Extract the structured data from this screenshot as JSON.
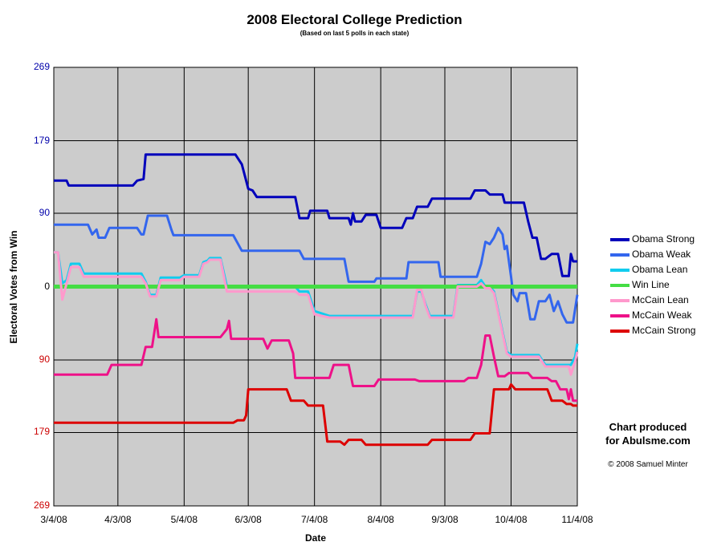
{
  "chart_data": {
    "type": "line",
    "title": "2008 Electoral College Prediction",
    "subtitle": "(Based on last 5 polls in each state)",
    "xlabel": "Date",
    "ylabel": "Electoral Votes from Win",
    "x_ticks": [
      "3/4/08",
      "4/3/08",
      "5/4/08",
      "6/3/08",
      "7/4/08",
      "8/4/08",
      "9/3/08",
      "10/4/08",
      "11/4/08"
    ],
    "x_range": [
      "3/4/08",
      "11/4/08"
    ],
    "y_range": [
      -269,
      269
    ],
    "y_ticks": [
      {
        "value": 269,
        "label": "269",
        "color": "#0000aa"
      },
      {
        "value": 179,
        "label": "179",
        "color": "#0000aa"
      },
      {
        "value": 90,
        "label": "90",
        "color": "#0000aa"
      },
      {
        "value": 0,
        "label": "0",
        "color": "#000000"
      },
      {
        "value": -90,
        "label": "90",
        "color": "#cc0000"
      },
      {
        "value": -179,
        "label": "179",
        "color": "#cc0000"
      },
      {
        "value": -269,
        "label": "269",
        "color": "#cc0000"
      }
    ],
    "grid": true,
    "plot_background": "#cccccc",
    "legend_position": "right",
    "series": [
      {
        "name": "Obama Strong",
        "color": "#0000bb",
        "points": [
          [
            "3/4/08",
            130
          ],
          [
            "3/10/08",
            130
          ],
          [
            "3/11/08",
            124
          ],
          [
            "4/10/08",
            124
          ],
          [
            "4/12/08",
            130
          ],
          [
            "4/15/08",
            132
          ],
          [
            "4/16/08",
            162
          ],
          [
            "5/28/08",
            162
          ],
          [
            "5/31/08",
            150
          ],
          [
            "6/3/08",
            120
          ],
          [
            "6/5/08",
            118
          ],
          [
            "6/7/08",
            110
          ],
          [
            "6/25/08",
            110
          ],
          [
            "6/27/08",
            84
          ],
          [
            "7/1/08",
            84
          ],
          [
            "7/2/08",
            93
          ],
          [
            "7/10/08",
            93
          ],
          [
            "7/11/08",
            84
          ],
          [
            "7/20/08",
            84
          ],
          [
            "7/21/08",
            76
          ],
          [
            "7/22/08",
            90
          ],
          [
            "7/23/08",
            80
          ],
          [
            "7/26/08",
            80
          ],
          [
            "7/28/08",
            88
          ],
          [
            "8/2/08",
            88
          ],
          [
            "8/4/08",
            72
          ],
          [
            "8/14/08",
            72
          ],
          [
            "8/16/08",
            84
          ],
          [
            "8/19/08",
            84
          ],
          [
            "8/21/08",
            98
          ],
          [
            "8/26/08",
            98
          ],
          [
            "8/28/08",
            108
          ],
          [
            "9/15/08",
            108
          ],
          [
            "9/17/08",
            118
          ],
          [
            "9/22/08",
            118
          ],
          [
            "9/24/08",
            113
          ],
          [
            "9/30/08",
            113
          ],
          [
            "10/1/08",
            103
          ],
          [
            "10/10/08",
            103
          ],
          [
            "10/12/08",
            80
          ],
          [
            "10/14/08",
            60
          ],
          [
            "10/16/08",
            60
          ],
          [
            "10/18/08",
            34
          ],
          [
            "10/20/08",
            34
          ],
          [
            "10/23/08",
            40
          ],
          [
            "10/26/08",
            40
          ],
          [
            "10/28/08",
            13
          ],
          [
            "10/31/08",
            13
          ],
          [
            "11/1/08",
            40
          ],
          [
            "11/2/08",
            31
          ],
          [
            "11/4/08",
            31
          ]
        ]
      },
      {
        "name": "Obama Weak",
        "color": "#3366ee",
        "points": [
          [
            "3/4/08",
            76
          ],
          [
            "3/20/08",
            76
          ],
          [
            "3/22/08",
            64
          ],
          [
            "3/24/08",
            70
          ],
          [
            "3/25/08",
            60
          ],
          [
            "3/28/08",
            60
          ],
          [
            "3/30/08",
            72
          ],
          [
            "4/12/08",
            72
          ],
          [
            "4/14/08",
            64
          ],
          [
            "4/15/08",
            64
          ],
          [
            "4/17/08",
            87
          ],
          [
            "4/26/08",
            87
          ],
          [
            "4/28/08",
            70
          ],
          [
            "4/29/08",
            63
          ],
          [
            "5/27/08",
            63
          ],
          [
            "5/31/08",
            44
          ],
          [
            "6/27/08",
            44
          ],
          [
            "6/29/08",
            34
          ],
          [
            "7/18/08",
            34
          ],
          [
            "7/20/08",
            6
          ],
          [
            "8/1/08",
            6
          ],
          [
            "8/2/08",
            10
          ],
          [
            "8/16/08",
            10
          ],
          [
            "8/17/08",
            30
          ],
          [
            "8/31/08",
            30
          ],
          [
            "9/1/08",
            12
          ],
          [
            "9/18/08",
            12
          ],
          [
            "9/20/08",
            28
          ],
          [
            "9/22/08",
            55
          ],
          [
            "9/24/08",
            52
          ],
          [
            "9/26/08",
            60
          ],
          [
            "9/28/08",
            72
          ],
          [
            "9/30/08",
            64
          ],
          [
            "10/1/08",
            46
          ],
          [
            "10/2/08",
            50
          ],
          [
            "10/4/08",
            12
          ],
          [
            "10/5/08",
            -10
          ],
          [
            "10/7/08",
            -18
          ],
          [
            "10/8/08",
            -8
          ],
          [
            "10/11/08",
            -8
          ],
          [
            "10/13/08",
            -40
          ],
          [
            "10/15/08",
            -40
          ],
          [
            "10/17/08",
            -18
          ],
          [
            "10/20/08",
            -18
          ],
          [
            "10/22/08",
            -10
          ],
          [
            "10/24/08",
            -30
          ],
          [
            "10/26/08",
            -18
          ],
          [
            "10/28/08",
            -34
          ],
          [
            "10/30/08",
            -44
          ],
          [
            "11/2/08",
            -44
          ],
          [
            "11/4/08",
            -10
          ]
        ]
      },
      {
        "name": "Obama Lean",
        "color": "#11ccee",
        "points": [
          [
            "3/4/08",
            42
          ],
          [
            "3/6/08",
            42
          ],
          [
            "3/8/08",
            4
          ],
          [
            "3/10/08",
            8
          ],
          [
            "3/12/08",
            28
          ],
          [
            "3/16/08",
            28
          ],
          [
            "3/18/08",
            16
          ],
          [
            "4/14/08",
            16
          ],
          [
            "4/16/08",
            6
          ],
          [
            "4/18/08",
            -10
          ],
          [
            "4/21/08",
            -10
          ],
          [
            "4/23/08",
            11
          ],
          [
            "5/2/08",
            11
          ],
          [
            "5/4/08",
            14
          ],
          [
            "5/11/08",
            14
          ],
          [
            "5/13/08",
            30
          ],
          [
            "5/15/08",
            32
          ],
          [
            "5/16/08",
            35
          ],
          [
            "5/21/08",
            35
          ],
          [
            "5/24/08",
            0
          ],
          [
            "6/25/08",
            0
          ],
          [
            "6/27/08",
            -6
          ],
          [
            "7/1/08",
            -6
          ],
          [
            "7/4/08",
            -30
          ],
          [
            "7/11/08",
            -36
          ],
          [
            "8/19/08",
            -36
          ],
          [
            "8/21/08",
            -6
          ],
          [
            "8/23/08",
            -6
          ],
          [
            "8/25/08",
            -22
          ],
          [
            "8/27/08",
            -36
          ],
          [
            "9/7/08",
            -36
          ],
          [
            "9/9/08",
            2
          ],
          [
            "9/18/08",
            2
          ],
          [
            "9/20/08",
            8
          ],
          [
            "9/22/08",
            0
          ],
          [
            "9/24/08",
            0
          ],
          [
            "9/26/08",
            -6
          ],
          [
            "10/2/08",
            -80
          ],
          [
            "10/4/08",
            -84
          ],
          [
            "10/17/08",
            -84
          ],
          [
            "10/20/08",
            -96
          ],
          [
            "11/1/08",
            -96
          ],
          [
            "11/3/08",
            -86
          ],
          [
            "11/4/08",
            -70
          ]
        ]
      },
      {
        "name": "Win Line",
        "color": "#44dd44",
        "points": [
          [
            "3/4/08",
            0
          ],
          [
            "11/4/08",
            0
          ]
        ]
      },
      {
        "name": "McCain Lean",
        "color": "#ff99cc",
        "points": [
          [
            "3/4/08",
            42
          ],
          [
            "3/6/08",
            42
          ],
          [
            "3/8/08",
            -16
          ],
          [
            "3/10/08",
            4
          ],
          [
            "3/12/08",
            24
          ],
          [
            "3/16/08",
            24
          ],
          [
            "3/18/08",
            12
          ],
          [
            "4/14/08",
            12
          ],
          [
            "4/16/08",
            4
          ],
          [
            "4/18/08",
            -12
          ],
          [
            "4/21/08",
            -12
          ],
          [
            "4/23/08",
            8
          ],
          [
            "5/2/08",
            8
          ],
          [
            "5/4/08",
            12
          ],
          [
            "5/11/08",
            12
          ],
          [
            "5/13/08",
            28
          ],
          [
            "5/15/08",
            30
          ],
          [
            "5/16/08",
            33
          ],
          [
            "5/21/08",
            33
          ],
          [
            "5/24/08",
            -6
          ],
          [
            "6/25/08",
            -6
          ],
          [
            "6/27/08",
            -10
          ],
          [
            "7/1/08",
            -10
          ],
          [
            "7/4/08",
            -34
          ],
          [
            "7/11/08",
            -38
          ],
          [
            "8/19/08",
            -38
          ],
          [
            "8/21/08",
            -4
          ],
          [
            "8/23/08",
            -4
          ],
          [
            "8/25/08",
            -24
          ],
          [
            "8/27/08",
            -38
          ],
          [
            "9/7/08",
            -38
          ],
          [
            "9/9/08",
            0
          ],
          [
            "9/18/08",
            0
          ],
          [
            "9/20/08",
            4
          ],
          [
            "9/22/08",
            -2
          ],
          [
            "9/24/08",
            -2
          ],
          [
            "9/26/08",
            -8
          ],
          [
            "10/2/08",
            -82
          ],
          [
            "10/4/08",
            -86
          ],
          [
            "10/17/08",
            -86
          ],
          [
            "10/20/08",
            -98
          ],
          [
            "10/31/08",
            -98
          ],
          [
            "11/1/08",
            -108
          ],
          [
            "11/3/08",
            -92
          ],
          [
            "11/4/08",
            -80
          ]
        ]
      },
      {
        "name": "McCain Weak",
        "color": "#ee1188",
        "points": [
          [
            "3/4/08",
            -108
          ],
          [
            "3/29/08",
            -108
          ],
          [
            "3/31/08",
            -96
          ],
          [
            "4/14/08",
            -96
          ],
          [
            "4/16/08",
            -74
          ],
          [
            "4/19/08",
            -74
          ],
          [
            "4/21/08",
            -40
          ],
          [
            "4/22/08",
            -62
          ],
          [
            "5/21/08",
            -62
          ],
          [
            "5/24/08",
            -52
          ],
          [
            "5/25/08",
            -42
          ],
          [
            "5/26/08",
            -64
          ],
          [
            "6/10/08",
            -64
          ],
          [
            "6/12/08",
            -76
          ],
          [
            "6/14/08",
            -66
          ],
          [
            "6/22/08",
            -66
          ],
          [
            "6/24/08",
            -82
          ],
          [
            "6/25/08",
            -112
          ],
          [
            "7/11/08",
            -112
          ],
          [
            "7/13/08",
            -96
          ],
          [
            "7/20/08",
            -96
          ],
          [
            "7/22/08",
            -122
          ],
          [
            "8/1/08",
            -122
          ],
          [
            "8/3/08",
            -114
          ],
          [
            "8/20/08",
            -114
          ],
          [
            "8/22/08",
            -116
          ],
          [
            "9/12/08",
            -116
          ],
          [
            "9/14/08",
            -112
          ],
          [
            "9/18/08",
            -112
          ],
          [
            "9/20/08",
            -96
          ],
          [
            "9/22/08",
            -60
          ],
          [
            "9/24/08",
            -60
          ],
          [
            "9/26/08",
            -86
          ],
          [
            "9/28/08",
            -110
          ],
          [
            "10/1/08",
            -110
          ],
          [
            "10/3/08",
            -106
          ],
          [
            "10/12/08",
            -106
          ],
          [
            "10/14/08",
            -112
          ],
          [
            "10/21/08",
            -112
          ],
          [
            "10/23/08",
            -116
          ],
          [
            "10/25/08",
            -116
          ],
          [
            "10/27/08",
            -126
          ],
          [
            "10/30/08",
            -126
          ],
          [
            "10/31/08",
            -138
          ],
          [
            "11/1/08",
            -126
          ],
          [
            "11/2/08",
            -140
          ],
          [
            "11/4/08",
            -140
          ]
        ]
      },
      {
        "name": "McCain Strong",
        "color": "#dd0000",
        "points": [
          [
            "3/4/08",
            -167
          ],
          [
            "5/27/08",
            -167
          ],
          [
            "5/29/08",
            -164
          ],
          [
            "6/1/08",
            -164
          ],
          [
            "6/2/08",
            -158
          ],
          [
            "6/3/08",
            -126
          ],
          [
            "6/21/08",
            -126
          ],
          [
            "6/23/08",
            -140
          ],
          [
            "6/29/08",
            -140
          ],
          [
            "7/1/08",
            -146
          ],
          [
            "7/8/08",
            -146
          ],
          [
            "7/10/08",
            -190
          ],
          [
            "7/16/08",
            -190
          ],
          [
            "7/18/08",
            -194
          ],
          [
            "7/20/08",
            -188
          ],
          [
            "7/26/08",
            -188
          ],
          [
            "7/28/08",
            -194
          ],
          [
            "8/26/08",
            -194
          ],
          [
            "8/28/08",
            -188
          ],
          [
            "9/15/08",
            -188
          ],
          [
            "9/17/08",
            -180
          ],
          [
            "9/24/08",
            -180
          ],
          [
            "9/26/08",
            -126
          ],
          [
            "10/3/08",
            -126
          ],
          [
            "10/4/08",
            -120
          ],
          [
            "10/6/08",
            -126
          ],
          [
            "10/21/08",
            -126
          ],
          [
            "10/23/08",
            -140
          ],
          [
            "10/28/08",
            -140
          ],
          [
            "10/30/08",
            -144
          ],
          [
            "11/1/08",
            -144
          ],
          [
            "11/2/08",
            -146
          ],
          [
            "11/4/08",
            -146
          ]
        ]
      }
    ]
  },
  "credit": {
    "line1": "Chart produced",
    "line2": "for Abulsme.com",
    "copyright": "© 2008 Samuel Minter"
  }
}
